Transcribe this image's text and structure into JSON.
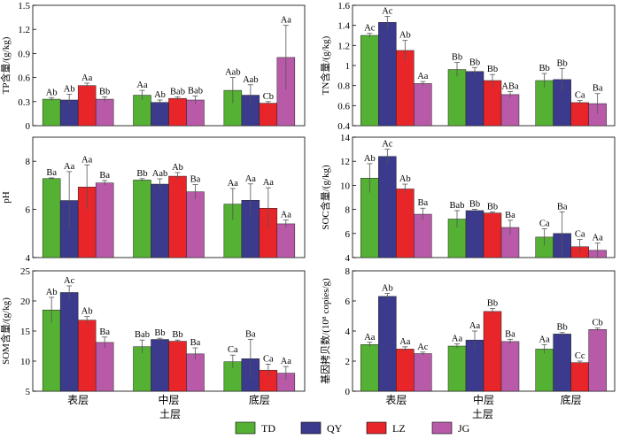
{
  "legend": [
    {
      "label": "TD",
      "color": "#55b133"
    },
    {
      "label": "QY",
      "color": "#3b3a8c"
    },
    {
      "label": "LZ",
      "color": "#e8262a"
    },
    {
      "label": "JG",
      "color": "#b85aa8"
    }
  ],
  "xlabel": "土层",
  "chart_data": [
    {
      "type": "bar",
      "ylabel": "TP含量/(g/kg)",
      "categories": [
        "",
        "",
        ""
      ],
      "ylim": [
        0,
        1.5
      ],
      "yticks": [
        0,
        0.3,
        0.6,
        0.9,
        1.2,
        1.5
      ],
      "series": [
        {
          "name": "TD",
          "values": [
            0.33,
            0.38,
            0.44
          ],
          "errors": [
            0.02,
            0.06,
            0.16
          ],
          "labels": [
            "Ab",
            "Aa",
            "Aab"
          ]
        },
        {
          "name": "QY",
          "values": [
            0.32,
            0.29,
            0.38
          ],
          "errors": [
            0.07,
            0.03,
            0.13
          ],
          "labels": [
            "Ab",
            "Ab",
            "Aab"
          ]
        },
        {
          "name": "LZ",
          "values": [
            0.5,
            0.34,
            0.28
          ],
          "errors": [
            0.03,
            0.02,
            0.02
          ],
          "labels": [
            "Aa",
            "Bab",
            "Cb"
          ]
        },
        {
          "name": "JG",
          "values": [
            0.33,
            0.32,
            0.85
          ],
          "errors": [
            0.03,
            0.05,
            0.4
          ],
          "labels": [
            "Bb",
            "Bab",
            "Aa"
          ]
        }
      ]
    },
    {
      "type": "bar",
      "ylabel": "TN含量/(g/kg)",
      "categories": [
        "",
        "",
        ""
      ],
      "ylim": [
        0.4,
        1.6
      ],
      "yticks": [
        0.4,
        0.6,
        0.8,
        1.0,
        1.2,
        1.4,
        1.6
      ],
      "series": [
        {
          "name": "TD",
          "values": [
            1.3,
            0.96,
            0.85
          ],
          "errors": [
            0.02,
            0.07,
            0.07
          ],
          "labels": [
            "Ac",
            "Bb",
            "Bb"
          ]
        },
        {
          "name": "QY",
          "values": [
            1.43,
            0.94,
            0.86
          ],
          "errors": [
            0.06,
            0.04,
            0.11
          ],
          "labels": [
            "Ac",
            "Bb",
            "Bb"
          ]
        },
        {
          "name": "LZ",
          "values": [
            1.15,
            0.85,
            0.63
          ],
          "errors": [
            0.1,
            0.06,
            0.02
          ],
          "labels": [
            "Ab",
            "Bb",
            "Ca"
          ]
        },
        {
          "name": "JG",
          "values": [
            0.82,
            0.71,
            0.62
          ],
          "errors": [
            0.02,
            0.03,
            0.1
          ],
          "labels": [
            "Aa",
            "ABa",
            "Ba"
          ]
        }
      ]
    },
    {
      "type": "bar",
      "ylabel": "pH",
      "categories": [
        "",
        "",
        ""
      ],
      "ylim": [
        4,
        9
      ],
      "yticks": [
        4,
        6,
        8
      ],
      "series": [
        {
          "name": "TD",
          "values": [
            7.28,
            7.22,
            6.22
          ],
          "errors": [
            0.03,
            0.06,
            0.65
          ],
          "labels": [
            "Ba",
            "Bb",
            "Aa"
          ]
        },
        {
          "name": "QY",
          "values": [
            6.37,
            7.05,
            6.38
          ],
          "errors": [
            1.2,
            0.22,
            0.68
          ],
          "labels": [
            "Aa",
            "Aab",
            "Aa"
          ]
        },
        {
          "name": "LZ",
          "values": [
            6.93,
            7.38,
            6.05
          ],
          "errors": [
            0.92,
            0.15,
            0.85
          ],
          "labels": [
            "Aa",
            "Ab",
            "Aa"
          ]
        },
        {
          "name": "JG",
          "values": [
            7.1,
            6.73,
            5.4
          ],
          "errors": [
            0.1,
            0.3,
            0.16
          ],
          "labels": [
            "Ba",
            "Ba",
            "Aa"
          ]
        }
      ]
    },
    {
      "type": "bar",
      "ylabel": "SOC含量/(g/kg)",
      "categories": [
        "",
        "",
        ""
      ],
      "ylim": [
        4,
        14
      ],
      "yticks": [
        4,
        6,
        8,
        10,
        12,
        14
      ],
      "series": [
        {
          "name": "TD",
          "values": [
            10.6,
            7.2,
            5.7
          ],
          "errors": [
            1.2,
            0.7,
            0.7
          ],
          "labels": [
            "Ab",
            "Bab",
            "Ca"
          ]
        },
        {
          "name": "QY",
          "values": [
            12.4,
            7.9,
            6.0
          ],
          "errors": [
            0.6,
            0.1,
            1.8
          ],
          "labels": [
            "Ac",
            "Bb",
            "Ba"
          ]
        },
        {
          "name": "LZ",
          "values": [
            9.7,
            7.7,
            4.9
          ],
          "errors": [
            0.4,
            0.1,
            0.6
          ],
          "labels": [
            "Ab",
            "Bb",
            "Ca"
          ]
        },
        {
          "name": "JG",
          "values": [
            7.6,
            6.5,
            4.6
          ],
          "errors": [
            0.5,
            0.6,
            0.6
          ],
          "labels": [
            "Ba",
            "Ba",
            "Aa"
          ]
        }
      ]
    },
    {
      "type": "bar",
      "ylabel": "SOM含量/(g/kg)",
      "categories": [
        "表层",
        "中层",
        "底层"
      ],
      "ylim": [
        5,
        25
      ],
      "yticks": [
        5,
        10,
        15,
        20,
        25
      ],
      "series": [
        {
          "name": "TD",
          "values": [
            18.5,
            12.4,
            9.9
          ],
          "errors": [
            2.1,
            1.1,
            1.1
          ],
          "labels": [
            "Ab",
            "Bab",
            "Ca"
          ]
        },
        {
          "name": "QY",
          "values": [
            21.4,
            13.6,
            10.4
          ],
          "errors": [
            1.1,
            0.2,
            3.2
          ],
          "labels": [
            "Ac",
            "Bb",
            "Ba"
          ]
        },
        {
          "name": "LZ",
          "values": [
            16.8,
            13.3,
            8.5
          ],
          "errors": [
            0.6,
            0.2,
            1.0
          ],
          "labels": [
            "Ab",
            "Bb",
            "Ca"
          ]
        },
        {
          "name": "JG",
          "values": [
            13.1,
            11.2,
            8.0
          ],
          "errors": [
            0.9,
            1.0,
            1.1
          ],
          "labels": [
            "Ba",
            "Ba",
            "Aa"
          ]
        }
      ]
    },
    {
      "type": "bar",
      "ylabel": "基因拷贝数/(10⁸ copies/g)",
      "categories": [
        "表层",
        "中层",
        "底层"
      ],
      "ylim": [
        0,
        8
      ],
      "yticks": [
        0,
        2,
        4,
        6,
        8
      ],
      "series": [
        {
          "name": "TD",
          "values": [
            3.1,
            3.0,
            2.8
          ],
          "errors": [
            0.15,
            0.15,
            0.3
          ],
          "labels": [
            "Aa",
            "Aa",
            "Aa"
          ]
        },
        {
          "name": "QY",
          "values": [
            6.3,
            3.4,
            3.8
          ],
          "errors": [
            0.2,
            0.6,
            0.1
          ],
          "labels": [
            "Ab",
            "Aa",
            "Bb"
          ]
        },
        {
          "name": "LZ",
          "values": [
            2.8,
            5.3,
            1.9
          ],
          "errors": [
            0.15,
            0.2,
            0.1
          ],
          "labels": [
            "Aa",
            "Bb",
            "Cc"
          ]
        },
        {
          "name": "JG",
          "values": [
            2.5,
            3.3,
            4.1
          ],
          "errors": [
            0.1,
            0.15,
            0.1
          ],
          "labels": [
            "Ac",
            "Ba",
            "Cb"
          ]
        }
      ]
    }
  ]
}
